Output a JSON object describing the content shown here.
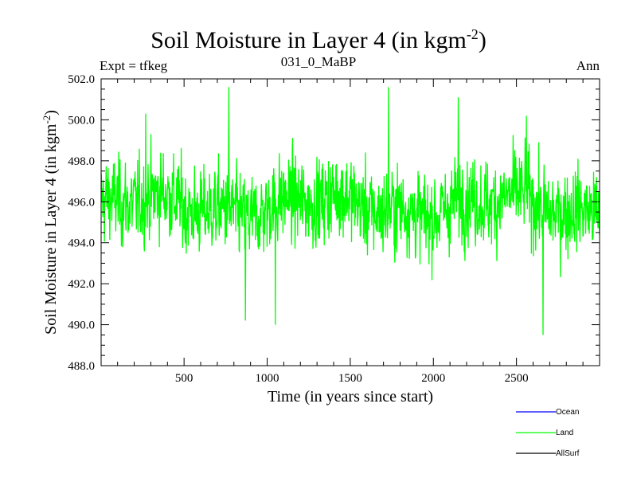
{
  "header": {
    "title_main": "Soil Moisture in Layer 4 (in kgm",
    "title_sup": "-2",
    "title_end": ")",
    "left_label": "Expt = tfkeg",
    "center_label": "031_0_MaBP",
    "right_label": "Ann"
  },
  "chart_data": {
    "type": "line",
    "xlabel": "Time (in years since start)",
    "ylabel": "Soil Moisture in Layer 4 (in kgm",
    "ylabel_sup": "-2",
    "ylabel_end": ")",
    "xlim": [
      1,
      3000
    ],
    "ylim": [
      488.0,
      502.0
    ],
    "x_ticks": [
      500,
      1000,
      1500,
      2000,
      2500
    ],
    "x_tick_labels": [
      "500",
      "1000",
      "1500",
      "2000",
      "2500"
    ],
    "y_ticks": [
      488.0,
      490.0,
      492.0,
      494.0,
      496.0,
      498.0,
      500.0,
      502.0
    ],
    "y_tick_labels": [
      "488.0",
      "490.0",
      "492.0",
      "494.0",
      "496.0",
      "498.0",
      "500.0",
      "502.0"
    ],
    "legend_position": "bottom-right",
    "series": [
      {
        "name": "Ocean",
        "color": "#0000ff",
        "values": []
      },
      {
        "name": "Land",
        "color": "#00ff00",
        "mean": 495.8,
        "min": 489.5,
        "max": 501.6,
        "x_start": 1,
        "x_end": 3000,
        "extremes": [
          {
            "x": 270,
            "y": 500.3
          },
          {
            "x": 770,
            "y": 501.6
          },
          {
            "x": 870,
            "y": 490.2
          },
          {
            "x": 1050,
            "y": 490.0
          },
          {
            "x": 1730,
            "y": 501.6
          },
          {
            "x": 2150,
            "y": 501.1
          },
          {
            "x": 2660,
            "y": 489.5
          },
          {
            "x": 2560,
            "y": 500.2
          }
        ]
      },
      {
        "name": "AllSurf",
        "color": "#000000",
        "values": []
      }
    ]
  }
}
